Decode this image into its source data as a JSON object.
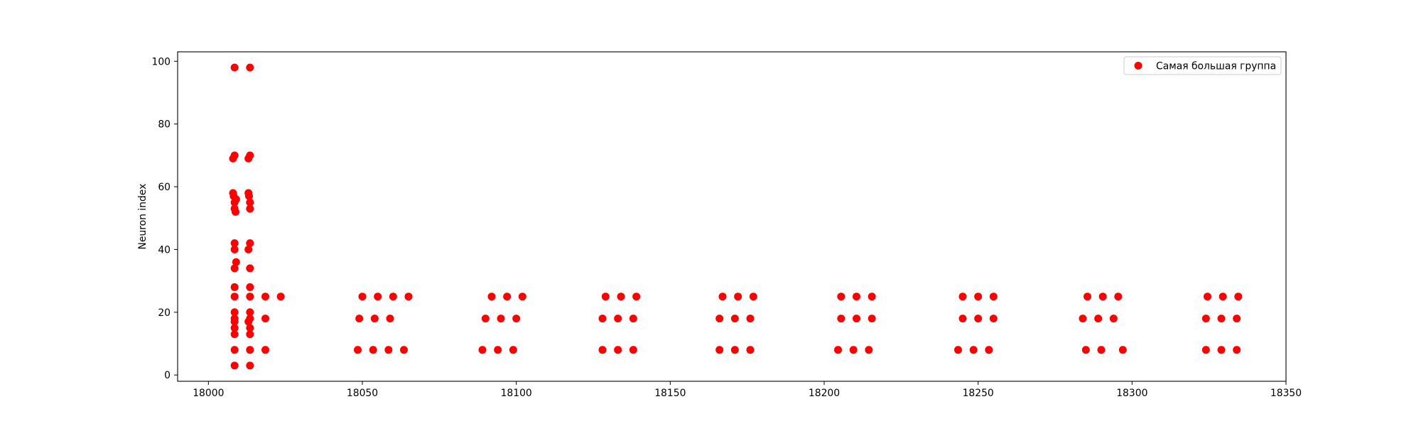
{
  "chart_data": {
    "type": "scatter",
    "title": "",
    "xlabel": "",
    "ylabel": "Neuron index",
    "xlim": [
      17990,
      18350
    ],
    "ylim": [
      -2,
      103
    ],
    "xticks": [
      18000,
      18050,
      18100,
      18150,
      18200,
      18250,
      18300,
      18350
    ],
    "yticks": [
      0,
      20,
      40,
      60,
      80,
      100
    ],
    "grid": false,
    "legend_position": "top-right",
    "series": [
      {
        "name": "Самая большая группа",
        "color": "#ff0000",
        "marker": "circle",
        "points": [
          [
            18008.5,
            98
          ],
          [
            18013.5,
            98
          ],
          [
            18008.5,
            70
          ],
          [
            18008,
            69
          ],
          [
            18013.5,
            70
          ],
          [
            18013,
            69
          ],
          [
            18008,
            58
          ],
          [
            18008.2,
            57
          ],
          [
            18008.5,
            55
          ],
          [
            18009,
            56
          ],
          [
            18013,
            58
          ],
          [
            18013.2,
            57
          ],
          [
            18013.5,
            55
          ],
          [
            18008.5,
            53
          ],
          [
            18008.8,
            52
          ],
          [
            18013.5,
            53
          ],
          [
            18008.5,
            42
          ],
          [
            18008.5,
            40
          ],
          [
            18013.5,
            42
          ],
          [
            18013,
            40
          ],
          [
            18009,
            36
          ],
          [
            18008.5,
            34
          ],
          [
            18013.5,
            34
          ],
          [
            18008.5,
            28
          ],
          [
            18013.5,
            28
          ],
          [
            18008.5,
            25
          ],
          [
            18013.5,
            25
          ],
          [
            18018.5,
            25
          ],
          [
            18023.5,
            25
          ],
          [
            18008.5,
            20
          ],
          [
            18008.5,
            18
          ],
          [
            18008.5,
            17
          ],
          [
            18008.5,
            15
          ],
          [
            18008.5,
            13
          ],
          [
            18013.5,
            20
          ],
          [
            18013.5,
            18
          ],
          [
            18013,
            17
          ],
          [
            18013.5,
            15
          ],
          [
            18013.5,
            13
          ],
          [
            18018.5,
            18
          ],
          [
            18008.5,
            8
          ],
          [
            18013.5,
            8
          ],
          [
            18018.5,
            8
          ],
          [
            18008.5,
            3
          ],
          [
            18013.5,
            3
          ],
          [
            18050,
            25
          ],
          [
            18055,
            25
          ],
          [
            18060,
            25
          ],
          [
            18065,
            25
          ],
          [
            18049,
            18
          ],
          [
            18054,
            18
          ],
          [
            18059,
            18
          ],
          [
            18048.5,
            8
          ],
          [
            18053.5,
            8
          ],
          [
            18058.5,
            8
          ],
          [
            18063.5,
            8
          ],
          [
            18092,
            25
          ],
          [
            18097,
            25
          ],
          [
            18102,
            25
          ],
          [
            18090,
            18
          ],
          [
            18095,
            18
          ],
          [
            18100,
            18
          ],
          [
            18089,
            8
          ],
          [
            18094,
            8
          ],
          [
            18099,
            8
          ],
          [
            18129,
            25
          ],
          [
            18134,
            25
          ],
          [
            18139,
            25
          ],
          [
            18128,
            18
          ],
          [
            18133,
            18
          ],
          [
            18138,
            18
          ],
          [
            18128,
            8
          ],
          [
            18133,
            8
          ],
          [
            18138,
            8
          ],
          [
            18167,
            25
          ],
          [
            18172,
            25
          ],
          [
            18177,
            25
          ],
          [
            18166,
            18
          ],
          [
            18171,
            18
          ],
          [
            18176,
            18
          ],
          [
            18166,
            8
          ],
          [
            18171,
            8
          ],
          [
            18176,
            8
          ],
          [
            18205.5,
            25
          ],
          [
            18210.5,
            25
          ],
          [
            18215.5,
            25
          ],
          [
            18205.5,
            18
          ],
          [
            18210.5,
            18
          ],
          [
            18215.5,
            18
          ],
          [
            18204.5,
            8
          ],
          [
            18209.5,
            8
          ],
          [
            18214.5,
            8
          ],
          [
            18245,
            25
          ],
          [
            18250,
            25
          ],
          [
            18255,
            25
          ],
          [
            18245,
            18
          ],
          [
            18250,
            18
          ],
          [
            18255,
            18
          ],
          [
            18243.5,
            8
          ],
          [
            18248.5,
            8
          ],
          [
            18253.5,
            8
          ],
          [
            18285.5,
            25
          ],
          [
            18290.5,
            25
          ],
          [
            18295.5,
            25
          ],
          [
            18284,
            18
          ],
          [
            18289,
            18
          ],
          [
            18294,
            18
          ],
          [
            18285,
            8
          ],
          [
            18290,
            8
          ],
          [
            18297,
            8
          ],
          [
            18324.5,
            25
          ],
          [
            18329.5,
            25
          ],
          [
            18334.5,
            25
          ],
          [
            18324,
            18
          ],
          [
            18329,
            18
          ],
          [
            18334,
            18
          ],
          [
            18324,
            8
          ],
          [
            18329,
            8
          ],
          [
            18334,
            8
          ]
        ]
      }
    ]
  }
}
